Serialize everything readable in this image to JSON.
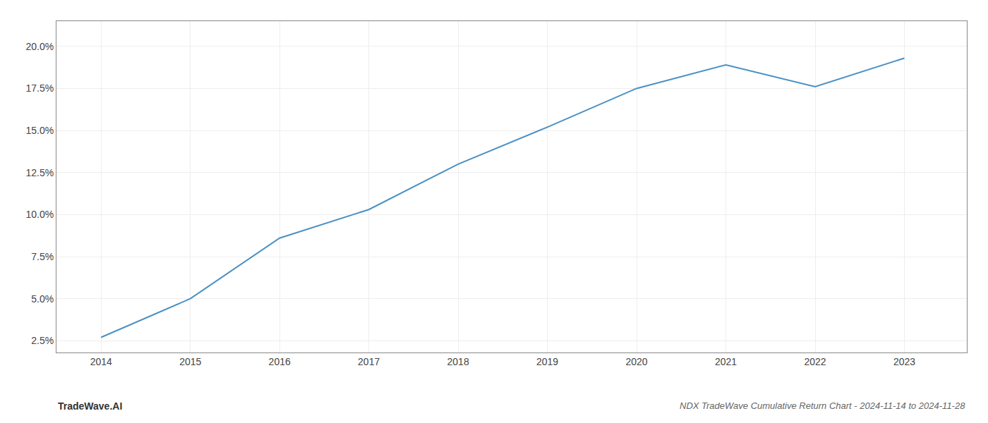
{
  "chart_data": {
    "type": "line",
    "title": "NDX TradeWave Cumulative Return Chart - 2024-11-14 to 2024-11-28",
    "annotations": [
      "TradeWave.AI"
    ],
    "x": [
      2014,
      2015,
      2016,
      2017,
      2018,
      2019,
      2020,
      2021,
      2022,
      2023
    ],
    "values": [
      0.027,
      0.05,
      0.086,
      0.103,
      0.13,
      0.152,
      0.175,
      0.189,
      0.176,
      0.193
    ],
    "color": "#4a90c4",
    "xlim": [
      2013.5,
      2023.7
    ],
    "ylim": [
      0.018,
      0.215
    ],
    "xticks": [
      2014,
      2015,
      2016,
      2017,
      2018,
      2019,
      2020,
      2021,
      2022,
      2023
    ],
    "yticks": [
      {
        "value": 0.025,
        "label": "2.5%"
      },
      {
        "value": 0.05,
        "label": "5.0%"
      },
      {
        "value": 0.075,
        "label": "7.5%"
      },
      {
        "value": 0.1,
        "label": "10.0%"
      },
      {
        "value": 0.125,
        "label": "12.5%"
      },
      {
        "value": 0.15,
        "label": "15.0%"
      },
      {
        "value": 0.175,
        "label": "17.5%"
      },
      {
        "value": 0.2,
        "label": "20.0%"
      }
    ],
    "grid": true
  }
}
